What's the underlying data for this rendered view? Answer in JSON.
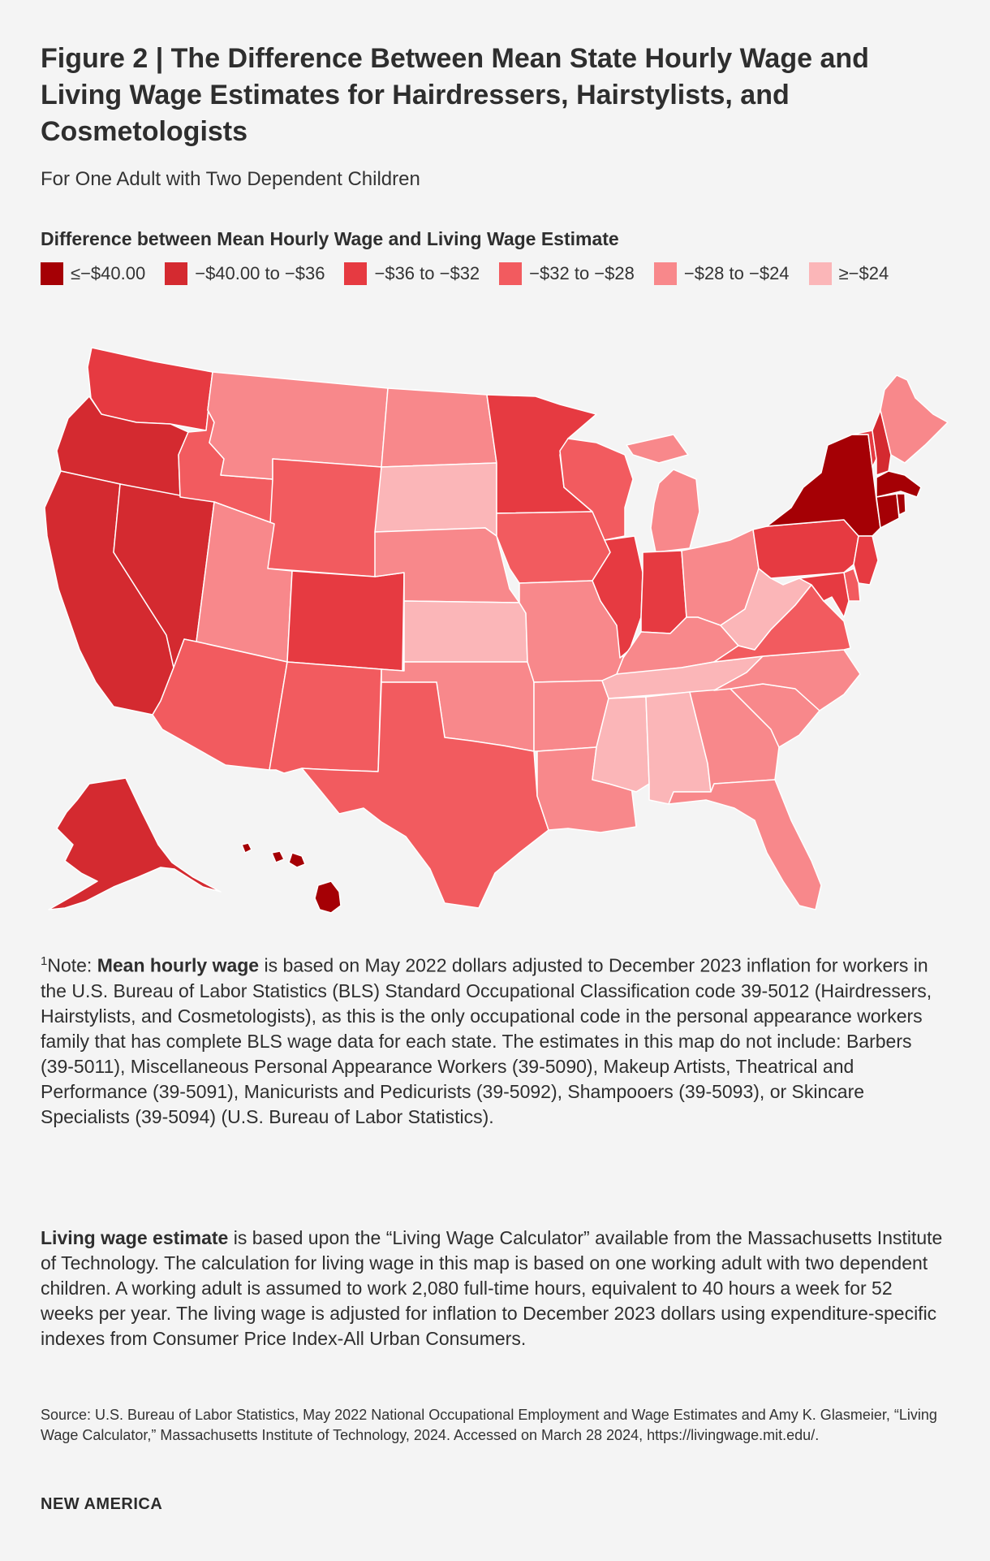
{
  "header": {
    "title": "Figure 2 | The Difference Between Mean State Hourly Wage and Living Wage Estimates for Hairdressers, Hairstylists, and Cosmetologists",
    "subtitle": "For One Adult with Two Dependent Children"
  },
  "legend": {
    "title": "Difference between Mean Hourly Wage and Living Wage Estimate",
    "items": [
      {
        "label": "≤−$40.00",
        "color": "#a50005"
      },
      {
        "label": "−$40.00 to −$36",
        "color": "#d42a30"
      },
      {
        "label": "−$36 to −$32",
        "color": "#e63a41"
      },
      {
        "label": "−$32 to −$28",
        "color": "#f25b5f"
      },
      {
        "label": "−$28 to −$24",
        "color": "#f8888b"
      },
      {
        "label": "≥−$24",
        "color": "#fbb6b8"
      }
    ]
  },
  "map_data": {
    "type": "choropleth",
    "region": "United States",
    "states": {
      "WA": 2,
      "OR": 1,
      "CA": 1,
      "NV": 1,
      "ID": 3,
      "MT": 4,
      "WY": 3,
      "UT": 4,
      "AZ": 3,
      "CO": 2,
      "NM": 3,
      "ND": 4,
      "SD": 5,
      "NE": 4,
      "KS": 5,
      "OK": 4,
      "TX": 3,
      "MN": 2,
      "IA": 3,
      "MO": 4,
      "AR": 4,
      "LA": 4,
      "WI": 3,
      "IL": 2,
      "MI": 4,
      "IN": 2,
      "OH": 4,
      "KY": 4,
      "TN": 5,
      "MS": 5,
      "AL": 5,
      "GA": 4,
      "FL": 4,
      "SC": 4,
      "NC": 4,
      "VA": 3,
      "WV": 5,
      "PA": 2,
      "NY": 0,
      "VT": 2,
      "NH": 1,
      "ME": 4,
      "MA": 0,
      "CT": 0,
      "RI": 0,
      "NJ": 2,
      "DE": 3,
      "MD": 2,
      "AK": 1,
      "HI": 0
    }
  },
  "notes": {
    "sup": "1",
    "note_prefix": "Note: ",
    "mean_term": "Mean hourly wage",
    "mean_text": " is based on May 2022 dollars adjusted to December 2023 inflation for workers in the U.S. Bureau of Labor Statistics (BLS) Standard Occupational Classification code 39-5012 (Hairdressers, Hairstylists, and Cosmetologists), as this is the only occupational code in the personal appearance workers family that has complete BLS wage data for each state. The estimates in this map do not include: Barbers (39-5011), Miscellaneous Personal Appearance Workers (39-5090), Makeup Artists, Theatrical and Performance (39-5091), Manicurists and Pedicurists (39-5092), Shampooers (39-5093), or Skincare Specialists (39-5094) (U.S. Bureau of Labor Statistics).",
    "living_term": "Living wage estimate",
    "living_text": " is based upon the “Living Wage Calculator” available from the Massachusetts Institute of Technology. The calculation for living wage in this map is based on one working adult with two dependent children. A working adult is assumed to work 2,080 full-time hours, equivalent to 40 hours a week for 52 weeks per year. The living wage is adjusted for inflation to December 2023 dollars using expenditure-specific indexes from Consumer Price Index-All Urban Consumers."
  },
  "source": "Source: U.S. Bureau of Labor Statistics, May 2022 National Occupational Employment and Wage Estimates and Amy K. Glasmeier, “Living Wage Calculator,” Massachusetts Institute of Technology, 2024. Accessed on March 28 2024, https://livingwage.mit.edu/.",
  "brand": "NEW AMERICA"
}
